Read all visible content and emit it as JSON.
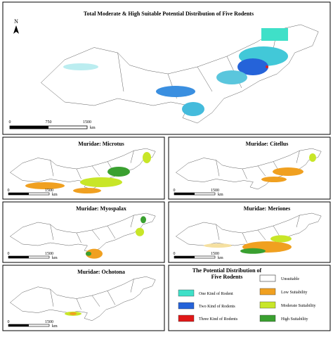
{
  "main_panel": {
    "title": "Total Moderate & High Suitable Potential Distribution of Five Rodents",
    "north": "N",
    "scale": [
      "0",
      "750",
      "1500"
    ],
    "unit": "km"
  },
  "panels": [
    {
      "title": "Muridae: Microtus",
      "scale": [
        "0",
        "1500"
      ],
      "unit": "km"
    },
    {
      "title": "Muridae: Citellus",
      "scale": [
        "0",
        "1500"
      ],
      "unit": "km"
    },
    {
      "title": "Muridae: Myospalax",
      "scale": [
        "0",
        "1500"
      ],
      "unit": "km"
    },
    {
      "title": "Muridae: Meriones",
      "scale": [
        "0",
        "1500"
      ],
      "unit": "km"
    },
    {
      "title": "Muridae: Ochotona",
      "scale": [
        "0",
        "1500"
      ],
      "unit": "km"
    }
  ],
  "legend": {
    "title_lines": [
      "The Potential Distribution of",
      "Five Rodents"
    ],
    "left_items": [
      "One Kind of Rodent",
      "Two Kind of Rodents",
      "Three Kind of Rodents"
    ],
    "right_items": [
      "Unsuitable",
      "Low Suitability",
      "Moderate Suitability",
      "High Suitability"
    ]
  }
}
